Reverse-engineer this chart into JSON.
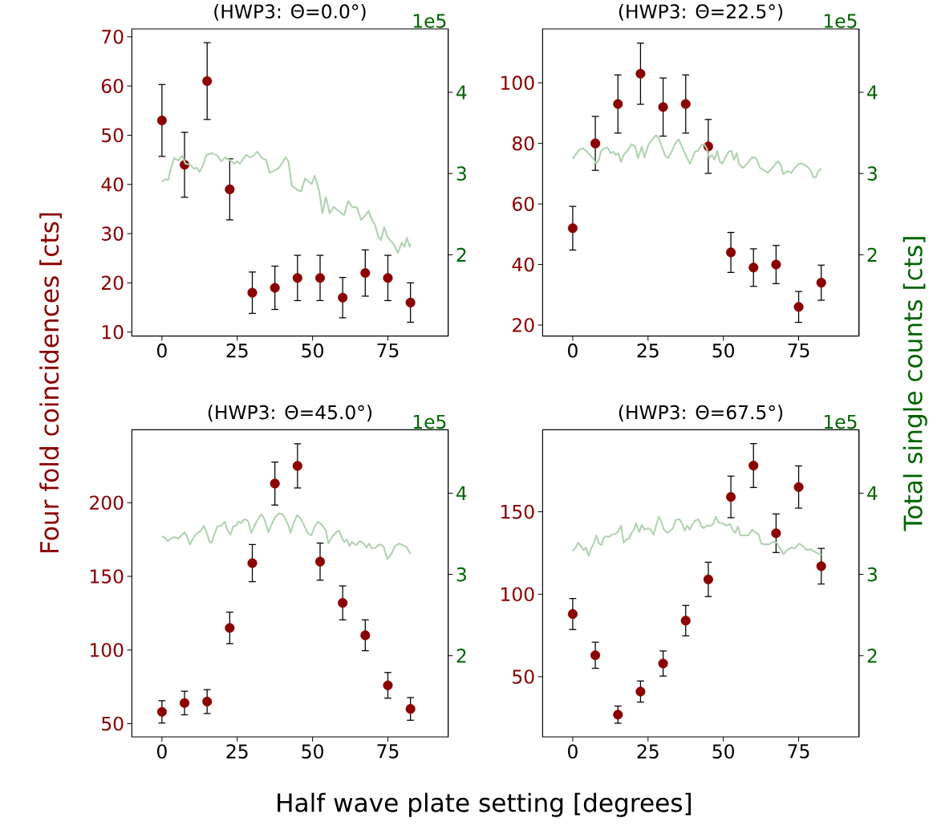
{
  "chart_data": [
    {
      "type": "scatter",
      "title": "(HWP3: Θ=0.0°)",
      "ylabel": "Four fold coincidences [cts]",
      "marker": "circle",
      "xlim": [
        -10,
        95
      ],
      "xticks": [
        0,
        25,
        50,
        75
      ],
      "ylim": [
        9.2,
        71.6
      ],
      "yticks": [
        10,
        20,
        30,
        40,
        50,
        60,
        70
      ],
      "y2lim": [
        1.0,
        4.78
      ],
      "y2ticks": [
        2,
        3,
        4
      ],
      "annotations": [
        "1e5"
      ],
      "series": [
        {
          "color": "#8b0000",
          "x": [
            0,
            7.5,
            15,
            22.5,
            30,
            37.5,
            45,
            52.5,
            60,
            67.5,
            75,
            82.5
          ],
          "values": [
            53,
            44,
            61,
            39,
            18,
            19,
            21,
            21,
            17,
            22,
            21,
            16
          ],
          "errors": [
            7.3,
            6.6,
            7.8,
            6.2,
            4.2,
            4.4,
            4.6,
            4.6,
            4.1,
            4.7,
            4.6,
            4.0
          ]
        },
        {
          "type": "line",
          "axis": "y2",
          "marker": "none",
          "color": "#b3d3b3",
          "x": [
            0,
            1.04,
            2.08,
            2.95,
            4.08,
            5.38,
            6.68,
            7.81,
            9.29,
            10.59,
            11.63,
            12.5,
            13.63,
            14.76,
            16.67,
            18.4,
            19.7,
            21.0,
            22.7,
            24.0,
            24.9,
            25.8,
            27.95,
            29.25,
            30.4,
            31.6,
            33.2,
            34.5,
            35.8,
            37.1,
            38.8,
            40.1,
            41.0,
            42.0,
            43.1,
            44.9,
            46.2,
            47.5,
            48.8,
            49.7,
            50.7,
            52.1,
            53.3,
            54.4,
            55.7,
            57.0,
            58.3,
            59.6,
            60.5,
            61.8,
            63.1,
            64.8,
            66.1,
            67.4,
            68.6,
            69.6,
            70.7,
            71.8,
            72.7,
            73.8,
            74.8,
            75.7,
            77.0,
            78.3,
            79.6,
            80.5,
            81.3,
            82.2,
            82.5
          ],
          "values": [
            2.9,
            2.93,
            2.92,
            3.06,
            3.19,
            3.16,
            3.22,
            3.12,
            3.11,
            3.06,
            3.07,
            3.02,
            3.1,
            3.23,
            3.25,
            3.22,
            3.15,
            3.2,
            3.16,
            3.12,
            3.15,
            3.12,
            3.23,
            3.2,
            3.22,
            3.27,
            3.19,
            3.17,
            3.01,
            3.03,
            3.07,
            3.14,
            3.2,
            3.15,
            2.85,
            2.8,
            2.78,
            2.94,
            2.9,
            2.87,
            2.97,
            2.8,
            2.51,
            2.71,
            2.51,
            2.59,
            2.55,
            2.51,
            2.49,
            2.66,
            2.59,
            2.58,
            2.43,
            2.48,
            2.54,
            2.44,
            2.37,
            2.23,
            2.18,
            2.34,
            2.23,
            2.18,
            2.13,
            2.02,
            2.15,
            2.1,
            2.21,
            2.1,
            2.14
          ]
        }
      ]
    },
    {
      "type": "scatter",
      "title": "(HWP3: Θ=22.5°)",
      "y2label": "Total single counts [cts]",
      "marker": "circle",
      "xlim": [
        -10,
        95
      ],
      "xticks": [
        0,
        25,
        50,
        75
      ],
      "ylim": [
        16.4,
        117.8
      ],
      "yticks": [
        20,
        40,
        60,
        80,
        100
      ],
      "y2lim": [
        1.0,
        4.78
      ],
      "y2ticks": [
        2,
        3,
        4
      ],
      "annotations": [
        "1e5"
      ],
      "series": [
        {
          "color": "#8b0000",
          "x": [
            0,
            7.5,
            15,
            22.5,
            30,
            37.5,
            45,
            52.5,
            60,
            67.5,
            75,
            82.5
          ],
          "values": [
            52,
            80,
            93,
            103,
            92,
            93,
            79,
            44,
            39,
            40,
            26,
            34
          ],
          "errors": [
            7.2,
            8.9,
            9.6,
            10.1,
            9.6,
            9.6,
            8.9,
            6.6,
            6.2,
            6.3,
            5.1,
            5.8
          ]
        },
        {
          "type": "line",
          "axis": "y2",
          "marker": "none",
          "color": "#b3d3b3",
          "x": [
            0,
            0.95,
            2.07,
            3.28,
            4.4,
            5.69,
            6.72,
            7.84,
            8.71,
            9.31,
            10.43,
            11.55,
            12.59,
            13.45,
            14.31,
            15.17,
            16.03,
            16.9,
            18.19,
            19.48,
            20.78,
            21.64,
            22.5,
            22.93,
            23.79,
            25.09,
            26.38,
            27.67,
            28.53,
            29.4,
            30.69,
            31.72,
            32.84,
            34.14,
            35.17,
            36.29,
            37.59,
            38.88,
            39.74,
            40.6,
            41.47,
            42.76,
            43.62,
            44.48,
            45.34,
            46.21,
            47.07,
            47.93,
            48.79,
            49.66,
            50.52,
            51.81,
            52.67,
            53.53,
            54.4,
            55.26,
            56.55,
            57.84,
            59.57,
            60.86,
            62.16,
            63.45,
            64.74,
            66.03,
            67.33,
            68.19,
            69.05,
            69.91,
            71.21,
            72.5,
            73.79,
            75.09,
            76.38,
            77.67,
            78.97,
            79.83,
            80.69,
            81.55,
            82.5
          ],
          "values": [
            3.18,
            3.23,
            3.29,
            3.31,
            3.28,
            3.23,
            3.19,
            3.12,
            3.17,
            3.27,
            3.31,
            3.32,
            3.25,
            3.27,
            3.23,
            3.25,
            3.14,
            3.23,
            3.28,
            3.36,
            3.33,
            3.19,
            3.28,
            3.33,
            3.2,
            3.35,
            3.42,
            3.47,
            3.44,
            3.35,
            3.22,
            3.19,
            3.27,
            3.38,
            3.42,
            3.33,
            3.22,
            3.12,
            3.19,
            3.27,
            3.28,
            3.35,
            3.36,
            3.31,
            3.19,
            3.23,
            3.17,
            3.28,
            3.15,
            3.12,
            3.19,
            3.27,
            3.28,
            3.17,
            3.25,
            3.11,
            3.07,
            3.12,
            3.2,
            3.19,
            3.07,
            3.04,
            3.01,
            3.06,
            3.12,
            3.15,
            3.11,
            2.99,
            3.03,
            3.01,
            3.07,
            3.12,
            3.12,
            3.09,
            3.04,
            2.96,
            2.95,
            3.03,
            3.06
          ]
        }
      ]
    },
    {
      "type": "scatter",
      "title": "(HWP3: Θ=45.0°)",
      "xlabel": "Half wave plate setting [degrees]",
      "marker": "circle",
      "xlim": [
        -10,
        95
      ],
      "xticks": [
        0,
        25,
        50,
        75
      ],
      "ylim": [
        41,
        249.5
      ],
      "yticks": [
        50,
        100,
        150,
        200
      ],
      "y2lim": [
        1.0,
        4.78
      ],
      "y2ticks": [
        2,
        3,
        4
      ],
      "annotations": [
        "1e5"
      ],
      "series": [
        {
          "color": "#8b0000",
          "x": [
            0,
            7.5,
            15,
            22.5,
            30,
            37.5,
            45,
            52.5,
            60,
            67.5,
            75,
            82.5
          ],
          "values": [
            58,
            64,
            65,
            115,
            159,
            213,
            225,
            160,
            132,
            110,
            76,
            60
          ],
          "errors": [
            7.6,
            8.0,
            8.1,
            10.7,
            12.6,
            14.6,
            15.0,
            12.6,
            11.5,
            10.5,
            8.7,
            7.7
          ]
        },
        {
          "type": "line",
          "axis": "y2",
          "marker": "none",
          "color": "#b3d3b3",
          "x": [
            0,
            1.04,
            1.91,
            2.95,
            4.08,
            5.38,
            6.68,
            7.55,
            8.42,
            9.29,
            10.16,
            11.02,
            11.89,
            13.02,
            13.89,
            14.76,
            15.8,
            16.49,
            17.36,
            18.4,
            19.7,
            20.83,
            21.7,
            22.74,
            23.61,
            24.65,
            25.35,
            26.22,
            27.08,
            27.78,
            28.65,
            29.69,
            30.73,
            31.86,
            32.99,
            34.03,
            35.33,
            36.46,
            37.5,
            38.8,
            40.1,
            40.97,
            42.01,
            42.71,
            43.58,
            44.88,
            46.18,
            47.22,
            48.35,
            49.65,
            50.69,
            51.82,
            53.13,
            54.43,
            55.3,
            56.42,
            57.9,
            58.77,
            59.64,
            60.5,
            61.37,
            62.24,
            63.11,
            64.41,
            65.71,
            67.01,
            67.88,
            68.75,
            69.62,
            70.92,
            72.22,
            73.52,
            74.83,
            76.13,
            77.43,
            78.73,
            80.03,
            81.34,
            82.5
          ],
          "values": [
            3.47,
            3.45,
            3.41,
            3.44,
            3.46,
            3.44,
            3.49,
            3.52,
            3.46,
            3.37,
            3.43,
            3.48,
            3.51,
            3.54,
            3.6,
            3.52,
            3.4,
            3.39,
            3.49,
            3.59,
            3.6,
            3.65,
            3.55,
            3.49,
            3.59,
            3.6,
            3.65,
            3.63,
            3.67,
            3.68,
            3.65,
            3.51,
            3.6,
            3.68,
            3.74,
            3.68,
            3.52,
            3.62,
            3.7,
            3.75,
            3.74,
            3.68,
            3.6,
            3.51,
            3.62,
            3.73,
            3.68,
            3.6,
            3.51,
            3.48,
            3.59,
            3.65,
            3.61,
            3.54,
            3.38,
            3.46,
            3.52,
            3.54,
            3.46,
            3.4,
            3.43,
            3.35,
            3.4,
            3.36,
            3.41,
            3.38,
            3.33,
            3.38,
            3.32,
            3.33,
            3.37,
            3.35,
            3.19,
            3.25,
            3.35,
            3.38,
            3.36,
            3.33,
            3.25
          ]
        }
      ]
    },
    {
      "type": "scatter",
      "title": "(HWP3: Θ=67.5°)",
      "marker": "circle",
      "xlim": [
        -10,
        95
      ],
      "xticks": [
        0,
        25,
        50,
        75
      ],
      "ylim": [
        13.5,
        199.7
      ],
      "yticks": [
        50,
        100,
        150
      ],
      "y2lim": [
        1.0,
        4.78
      ],
      "y2ticks": [
        2,
        3,
        4
      ],
      "annotations": [
        "1e5"
      ],
      "series": [
        {
          "color": "#8b0000",
          "x": [
            0,
            7.5,
            15,
            22.5,
            30,
            37.5,
            45,
            52.5,
            60,
            67.5,
            75,
            82.5
          ],
          "values": [
            88,
            63,
            27,
            41,
            58,
            84,
            109,
            159,
            178,
            137,
            165,
            117
          ],
          "errors": [
            9.4,
            7.9,
            5.2,
            6.4,
            7.6,
            9.2,
            10.4,
            12.6,
            13.3,
            11.7,
            12.8,
            10.8
          ]
        },
        {
          "type": "line",
          "axis": "y2",
          "marker": "none",
          "color": "#b3d3b3",
          "x": [
            0,
            0.95,
            1.81,
            2.67,
            3.53,
            4.4,
            5.26,
            6.12,
            6.98,
            7.84,
            8.71,
            9.57,
            10.17,
            10.86,
            11.9,
            13.02,
            14.14,
            15.0,
            16.03,
            16.9,
            17.76,
            18.62,
            19.48,
            20.34,
            21.03,
            22.07,
            22.93,
            23.79,
            25.09,
            25.95,
            26.81,
            27.67,
            28.53,
            29.4,
            30.26,
            31.55,
            32.41,
            33.28,
            34.14,
            35.43,
            36.29,
            37.16,
            38.02,
            38.88,
            39.74,
            40.6,
            41.72,
            42.59,
            43.45,
            44.48,
            45.78,
            46.64,
            47.5,
            48.36,
            49.66,
            50.95,
            52.24,
            53.1,
            53.97,
            54.83,
            55.69,
            56.98,
            58.28,
            59.57,
            60.86,
            61.72,
            62.59,
            63.88,
            65.17,
            66.47,
            67.76,
            68.62,
            69.91,
            71.21,
            72.5,
            73.79,
            75.09,
            76.38,
            77.67,
            78.97,
            80.26,
            82.5
          ],
          "values": [
            3.29,
            3.33,
            3.39,
            3.35,
            3.3,
            3.33,
            3.23,
            3.32,
            3.38,
            3.48,
            3.38,
            3.36,
            3.44,
            3.47,
            3.46,
            3.49,
            3.5,
            3.52,
            3.6,
            3.39,
            3.43,
            3.44,
            3.51,
            3.55,
            3.63,
            3.52,
            3.61,
            3.55,
            3.57,
            3.55,
            3.49,
            3.6,
            3.71,
            3.65,
            3.55,
            3.51,
            3.54,
            3.57,
            3.67,
            3.68,
            3.63,
            3.54,
            3.6,
            3.55,
            3.62,
            3.66,
            3.68,
            3.6,
            3.57,
            3.6,
            3.6,
            3.62,
            3.71,
            3.64,
            3.63,
            3.6,
            3.62,
            3.55,
            3.51,
            3.59,
            3.48,
            3.48,
            3.48,
            3.55,
            3.51,
            3.49,
            3.38,
            3.37,
            3.37,
            3.4,
            3.39,
            3.33,
            3.25,
            3.3,
            3.33,
            3.32,
            3.38,
            3.35,
            3.3,
            3.31,
            3.28,
            3.24
          ]
        }
      ]
    }
  ]
}
